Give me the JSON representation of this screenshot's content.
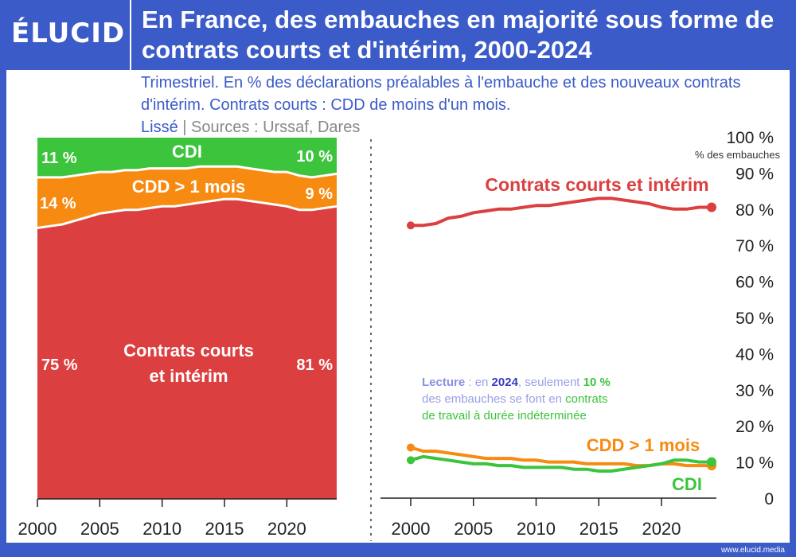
{
  "header": {
    "logo": "ÉLUCID",
    "title": "En France, des embauches en majorité sous forme de contrats courts et d'intérim, 2000-2024"
  },
  "subtitle": {
    "line": "Trimestriel. En % des déclarations préalables à l'embauche et des nouveaux contrats d'intérim. Contrats courts : CDD de moins d'un mois.",
    "lisse": "Lissé",
    "sep": "|",
    "sources": "Sources : Urssaf, Dares"
  },
  "footer": {
    "url": "www.elucid.media"
  },
  "colors": {
    "red": "#dc3f3f",
    "orange": "#f78a10",
    "green": "#3cc43c",
    "blue": "#3b5bc8",
    "grey": "#888888"
  },
  "chart_data": [
    {
      "type": "area",
      "stacked": true,
      "x": [
        2000,
        2001,
        2002,
        2003,
        2004,
        2005,
        2006,
        2007,
        2008,
        2009,
        2010,
        2011,
        2012,
        2013,
        2014,
        2015,
        2016,
        2017,
        2018,
        2019,
        2020,
        2021,
        2022,
        2023,
        2024
      ],
      "xticks": [
        "2000",
        "2005",
        "2010",
        "2015",
        "2020"
      ],
      "ylim": [
        0,
        100
      ],
      "series": [
        {
          "name": "Contrats courts et intérim",
          "label": "Contrats courts et intérim",
          "values": [
            75,
            75.5,
            76,
            77,
            78,
            79,
            79.5,
            80,
            80,
            80.5,
            81,
            81,
            81.5,
            82,
            82.5,
            83,
            83,
            82.5,
            82,
            81.5,
            81,
            80,
            80,
            80.5,
            81
          ],
          "start_label": "75 %",
          "end_label": "81 %"
        },
        {
          "name": "CDD > 1 mois",
          "label": "CDD > 1 mois",
          "values": [
            14,
            13.5,
            13,
            12.5,
            12,
            11.5,
            11,
            11,
            11,
            11,
            10.5,
            10.5,
            10,
            10,
            9.5,
            9,
            9,
            9,
            9,
            9,
            9.5,
            9.5,
            9,
            9,
            9
          ],
          "start_label": "14 %",
          "end_label": "9 %"
        },
        {
          "name": "CDI",
          "label": "CDI",
          "values": [
            11,
            11,
            11,
            10.5,
            10,
            9.5,
            9.5,
            9,
            9,
            8.5,
            8.5,
            8.5,
            8.5,
            8,
            8,
            8,
            8,
            8.5,
            9,
            9.5,
            9.5,
            10.5,
            11,
            10.5,
            10
          ],
          "start_label": "11 %",
          "end_label": "10 %"
        }
      ]
    },
    {
      "type": "line",
      "x": [
        2000,
        2001,
        2002,
        2003,
        2004,
        2005,
        2006,
        2007,
        2008,
        2009,
        2010,
        2011,
        2012,
        2013,
        2014,
        2015,
        2016,
        2017,
        2018,
        2019,
        2020,
        2021,
        2022,
        2023,
        2024
      ],
      "xticks": [
        "2000",
        "2005",
        "2010",
        "2015",
        "2020"
      ],
      "ylim": [
        0,
        100
      ],
      "yticks": [
        "0",
        "10 %",
        "20 %",
        "30 %",
        "40 %",
        "50 %",
        "60 %",
        "70 %",
        "80 %",
        "90 %",
        "100 %"
      ],
      "ylabel": "% des embauches",
      "series": [
        {
          "name": "Contrats courts et intérim",
          "values": [
            75.5,
            75.5,
            76,
            77.5,
            78,
            79,
            79.5,
            80,
            80,
            80.5,
            81,
            81,
            81.5,
            82,
            82.5,
            83,
            83,
            82.5,
            82,
            81.5,
            80.5,
            80,
            80,
            80.5,
            80.5
          ]
        },
        {
          "name": "CDD > 1 mois",
          "values": [
            14,
            13,
            13,
            12.5,
            12,
            11.5,
            11,
            11,
            11,
            10.5,
            10.5,
            10,
            10,
            10,
            9.5,
            9.5,
            9.5,
            9.5,
            9,
            9,
            9.5,
            9.5,
            9,
            9,
            9
          ]
        },
        {
          "name": "CDI",
          "values": [
            10.5,
            11.5,
            11,
            10.5,
            10,
            9.5,
            9.5,
            9,
            9,
            8.5,
            8.5,
            8.5,
            8.5,
            8,
            8,
            7.5,
            7.5,
            8,
            8.5,
            9,
            9.5,
            10.5,
            10.5,
            10,
            10
          ]
        }
      ],
      "annotation": {
        "lecture": "Lecture",
        "part1": " : en ",
        "year": "2024",
        "part2": ", seulement ",
        "pct": "10 %",
        "line2a": "des embauches se font en ",
        "line2b": "contrats",
        "line3": "de travail à durée indéterminée"
      }
    }
  ]
}
